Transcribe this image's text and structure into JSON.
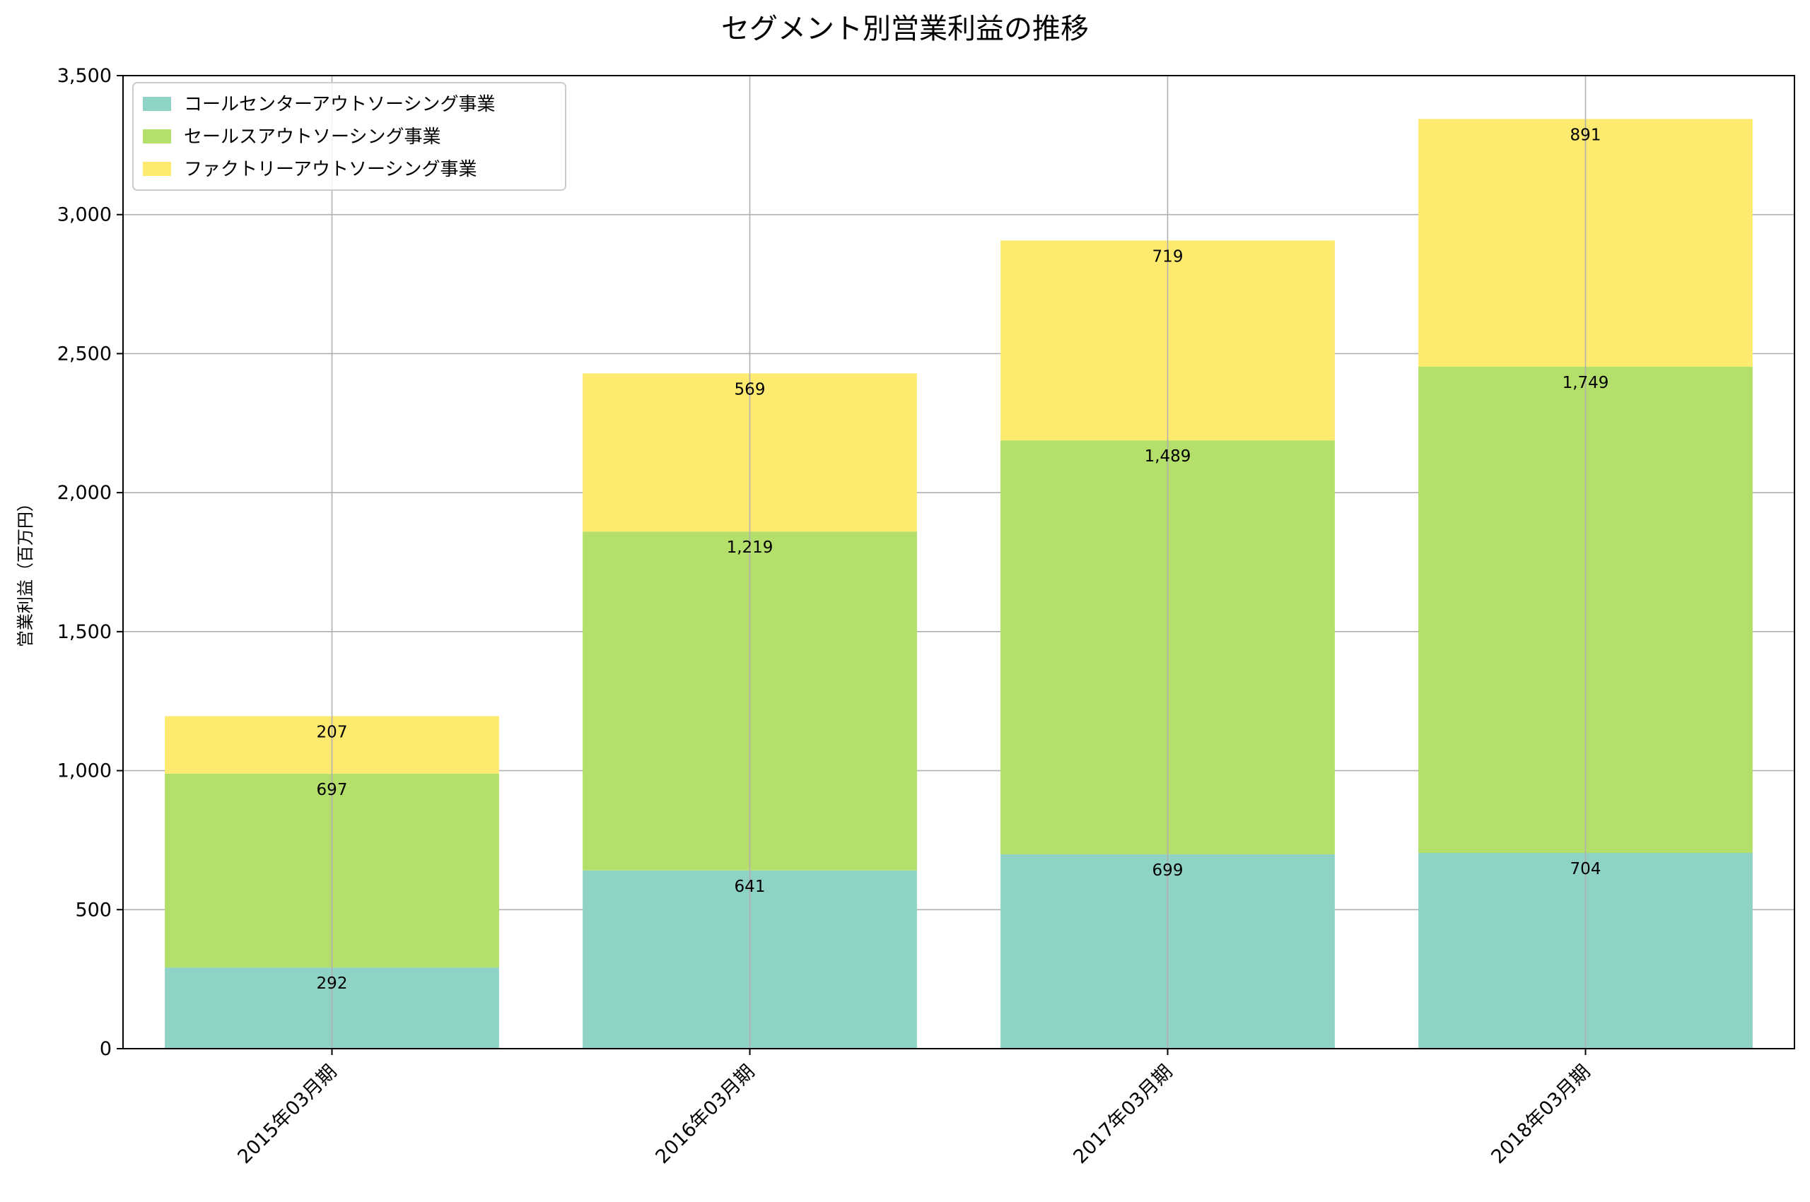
{
  "chart_data": {
    "type": "bar",
    "stacked": true,
    "title": "セグメント別営業利益の推移",
    "ylabel": "営業利益（百万円）",
    "xlabel": "",
    "categories": [
      "2015年03月期",
      "2016年03月期",
      "2017年03月期",
      "2018年03月期"
    ],
    "series": [
      {
        "name": "コールセンターアウトソーシング事業",
        "color": "#8fd3c6",
        "values": [
          292,
          641,
          699,
          704
        ],
        "labels": [
          "292",
          "641",
          "699",
          "704"
        ]
      },
      {
        "name": "セールスアウトソーシング事業",
        "color": "#b4df6a",
        "values": [
          697,
          1219,
          1489,
          1749
        ],
        "labels": [
          "697",
          "1,219",
          "1,489",
          "1,749"
        ]
      },
      {
        "name": "ファクトリーアウトソーシング事業",
        "color": "#ffea70",
        "values": [
          207,
          569,
          719,
          891
        ],
        "labels": [
          "207",
          "569",
          "719",
          "891"
        ]
      }
    ],
    "yticks": [
      0,
      500,
      1000,
      1500,
      2000,
      2500,
      3000,
      3500
    ],
    "ytick_labels": [
      "0",
      "500",
      "1,000",
      "1,500",
      "2,000",
      "2,500",
      "3,000",
      "3,500"
    ],
    "ylim": [
      0,
      3500
    ],
    "grid": true,
    "legend_position": "top-left"
  }
}
